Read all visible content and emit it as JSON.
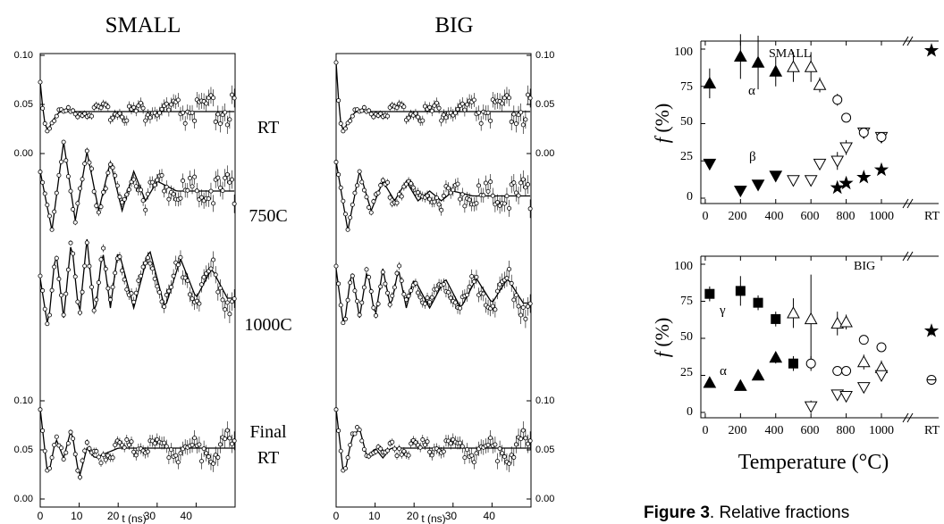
{
  "headings": {
    "small": "SMALL",
    "big": "BIG"
  },
  "time_panels": {
    "xlabel": "t (ns)",
    "x_ticks": [
      0,
      10,
      20,
      30,
      40
    ],
    "y_ticks": [
      "0.00",
      "0.05",
      "0.10"
    ],
    "small_x_ticks": [
      "0",
      "10",
      "20",
      "30",
      "40"
    ],
    "big_x_ticks": [
      "0",
      "10",
      "20",
      "30",
      "40"
    ],
    "small_y_ticks_top": [
      "0.10",
      "0.05",
      "0.00"
    ],
    "small_y_ticks_bottom": [
      "0.10",
      "0.05",
      "0.00"
    ],
    "big_y_ticks_top": [
      "0.10",
      "0.05",
      "0.00"
    ],
    "big_y_ticks_bottom": [
      "0.10",
      "0.05",
      "0.00"
    ]
  },
  "trace_labels": {
    "rt": "RT",
    "c750": "750C",
    "c1000": "1000C",
    "final1": "Final",
    "final2": "RT"
  },
  "frac": {
    "ylabel_f": "f",
    "ylabel_rest": " (%)",
    "xlabel": "Temperature (°C)",
    "small_title": "SMALL",
    "big_title": "BIG",
    "x_tick_labels": [
      "0",
      "200",
      "400",
      "600",
      "800",
      "1000"
    ],
    "rt_label": "RT",
    "y_tick_labels": [
      "0",
      "25",
      "50",
      "75",
      "100"
    ],
    "small_annotations": {
      "alpha": "α",
      "beta": "β"
    },
    "big_annotations": {
      "gamma": "γ",
      "alpha": "α"
    }
  },
  "caption": {
    "bold": "Figure 3",
    "rest": ". Relative fractions"
  },
  "chart_data": [
    {
      "type": "scatter",
      "title": "SMALL",
      "xlabel": "t (ns)",
      "ylabel": "",
      "xlim": [
        0,
        50
      ],
      "series": [
        {
          "name": "RT",
          "x": [
            0,
            1,
            2,
            3,
            5,
            10,
            20,
            30,
            40,
            50
          ],
          "values": [
            0.06,
            0.02,
            0.01,
            0.02,
            0.03,
            0.03,
            0.03,
            0.03,
            0.03,
            0.03
          ]
        },
        {
          "name": "750C",
          "x": [
            0,
            3,
            6,
            9,
            12,
            15,
            18,
            21,
            24,
            27,
            30,
            35,
            40,
            45,
            50
          ],
          "values": [
            0.06,
            0.0,
            0.09,
            0.01,
            0.08,
            0.02,
            0.07,
            0.02,
            0.06,
            0.03,
            0.05,
            0.04,
            0.04,
            0.04,
            0.04
          ]
        },
        {
          "name": "1000C",
          "x": [
            0,
            2,
            4,
            6,
            8,
            10,
            12,
            14,
            16,
            18,
            20,
            24,
            28,
            32,
            36,
            40,
            44,
            48
          ],
          "values": [
            0.06,
            0.01,
            0.09,
            0.02,
            0.1,
            0.02,
            0.1,
            0.02,
            0.09,
            0.03,
            0.09,
            0.03,
            0.09,
            0.03,
            0.08,
            0.04,
            0.07,
            0.04
          ]
        },
        {
          "name": "Final RT",
          "x": [
            0,
            2,
            4,
            6,
            8,
            10,
            12,
            14,
            20,
            30,
            40,
            50
          ],
          "values": [
            0.07,
            0.0,
            0.04,
            0.02,
            0.05,
            0.0,
            0.03,
            0.02,
            0.03,
            0.03,
            0.03,
            0.03
          ]
        }
      ]
    },
    {
      "type": "scatter",
      "title": "BIG",
      "xlabel": "t (ns)",
      "ylabel": "",
      "xlim": [
        0,
        50
      ],
      "series": [
        {
          "name": "RT",
          "x": [
            0,
            1,
            2,
            3,
            5,
            10,
            20,
            30,
            40,
            50
          ],
          "values": [
            0.08,
            0.02,
            0.01,
            0.02,
            0.03,
            0.03,
            0.03,
            0.03,
            0.03,
            0.03
          ]
        },
        {
          "name": "750C",
          "x": [
            0,
            3,
            6,
            9,
            12,
            15,
            18,
            21,
            24,
            27,
            30,
            35,
            40,
            45,
            50
          ],
          "values": [
            0.07,
            0.0,
            0.06,
            0.02,
            0.05,
            0.03,
            0.05,
            0.03,
            0.04,
            0.03,
            0.04,
            0.035,
            0.035,
            0.035,
            0.035
          ]
        },
        {
          "name": "1000C",
          "x": [
            0,
            2,
            4,
            6,
            8,
            10,
            12,
            14,
            16,
            18,
            20,
            24,
            28,
            32,
            36,
            40,
            44,
            48
          ],
          "values": [
            0.07,
            0.01,
            0.07,
            0.02,
            0.07,
            0.02,
            0.07,
            0.03,
            0.07,
            0.03,
            0.06,
            0.03,
            0.06,
            0.03,
            0.06,
            0.035,
            0.06,
            0.035
          ]
        },
        {
          "name": "Final RT",
          "x": [
            0,
            2,
            4,
            6,
            8,
            10,
            12,
            14,
            20,
            30,
            40,
            50
          ],
          "values": [
            0.07,
            0.0,
            0.04,
            0.05,
            0.02,
            0.03,
            0.02,
            0.03,
            0.03,
            0.03,
            0.03,
            0.03
          ]
        }
      ]
    },
    {
      "type": "scatter",
      "title": "SMALL",
      "xlabel": "Temperature (°C)",
      "ylabel": "f (%)",
      "ylim": [
        0,
        100
      ],
      "x_tick_labels": [
        "0",
        "200",
        "400",
        "600",
        "800",
        "1000",
        "RT"
      ],
      "series": [
        {
          "name": "α",
          "marker": "triangle-up-filled",
          "x": [
            25,
            200,
            300,
            400
          ],
          "values": [
            77,
            95,
            91,
            85
          ],
          "err": [
            10,
            15,
            18,
            10
          ]
        },
        {
          "name": "α",
          "marker": "triangle-up-open",
          "x": [
            500,
            600,
            650
          ],
          "values": [
            88,
            88,
            76
          ],
          "err": [
            10,
            10,
            5
          ]
        },
        {
          "name": "β",
          "marker": "triangle-down-filled",
          "x": [
            25,
            200,
            300,
            400
          ],
          "values": [
            23,
            5,
            9,
            15
          ],
          "err": [
            2,
            2,
            3,
            3
          ]
        },
        {
          "name": "β",
          "marker": "triangle-down-open",
          "x": [
            500,
            600,
            650,
            750,
            800,
            900,
            1000
          ],
          "values": [
            12,
            12,
            23,
            25,
            34,
            44,
            41
          ],
          "err": [
            3,
            3,
            3,
            6,
            5,
            3,
            3
          ]
        },
        {
          "marker": "circle-open",
          "x": [
            750,
            800,
            900,
            1000
          ],
          "values": [
            66,
            54,
            44,
            41
          ],
          "err": [
            4,
            2,
            2,
            2
          ]
        },
        {
          "marker": "star-filled",
          "x": [
            750,
            800,
            900,
            1000,
            "RT"
          ],
          "values": [
            7,
            10,
            14,
            19,
            99
          ],
          "err": [
            2,
            2,
            2,
            2,
            1
          ]
        }
      ]
    },
    {
      "type": "scatter",
      "title": "BIG",
      "xlabel": "Temperature (°C)",
      "ylabel": "f (%)",
      "ylim": [
        0,
        100
      ],
      "x_tick_labels": [
        "0",
        "200",
        "400",
        "600",
        "800",
        "1000",
        "RT"
      ],
      "series": [
        {
          "name": "γ",
          "marker": "square-filled",
          "x": [
            25,
            200,
            300,
            400,
            500
          ],
          "values": [
            80,
            82,
            74,
            63,
            33
          ],
          "err": [
            5,
            10,
            5,
            5,
            5
          ]
        },
        {
          "name": "α",
          "marker": "triangle-up-filled",
          "x": [
            25,
            200,
            300,
            400
          ],
          "values": [
            20,
            18,
            25,
            37
          ],
          "err": [
            3,
            3,
            3,
            4
          ]
        },
        {
          "marker": "triangle-up-open",
          "x": [
            500,
            600,
            750,
            800,
            900,
            1000
          ],
          "values": [
            67,
            63,
            60,
            61,
            34,
            30
          ],
          "err": [
            10,
            30,
            8,
            5,
            5,
            5
          ]
        },
        {
          "marker": "triangle-down-open",
          "x": [
            600,
            750,
            800,
            900,
            1000
          ],
          "values": [
            4,
            12,
            11,
            17,
            25
          ],
          "err": [
            4,
            3,
            3,
            3,
            3
          ]
        },
        {
          "marker": "circle-open",
          "x": [
            600,
            750,
            800,
            900,
            1000
          ],
          "values": [
            33,
            28,
            28,
            49,
            44
          ],
          "err": [
            5,
            3,
            3,
            3,
            3
          ]
        },
        {
          "marker": "star-filled",
          "x": [
            "RT"
          ],
          "values": [
            55
          ],
          "err": [
            3
          ]
        },
        {
          "marker": "circle-crossed",
          "x": [
            "RT"
          ],
          "values": [
            22
          ],
          "err": [
            3
          ]
        }
      ]
    }
  ]
}
